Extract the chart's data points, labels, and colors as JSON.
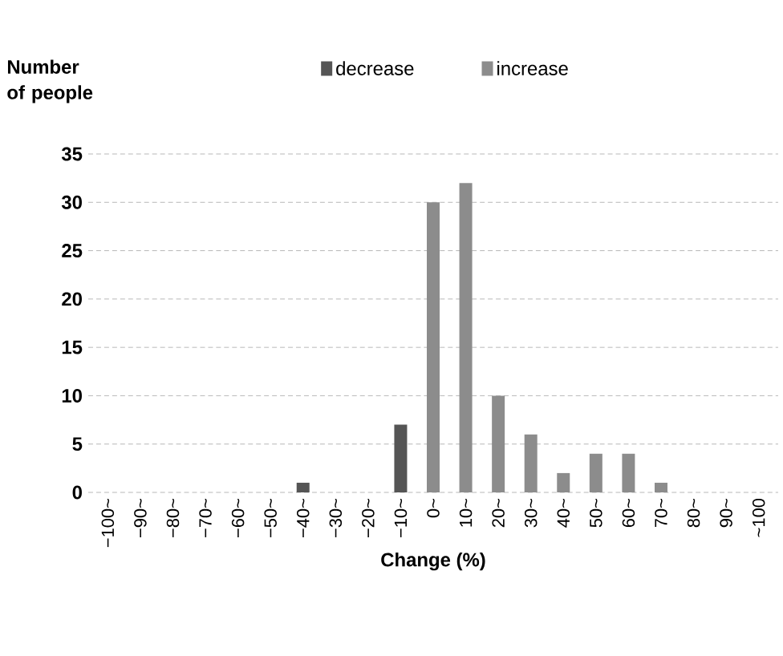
{
  "chart_data": {
    "type": "bar",
    "ylabel": "Number of people",
    "xlabel": "Change (%)",
    "categories": [
      "−100~",
      "−90~",
      "−80~",
      "−70~",
      "−60~",
      "−50~",
      "−40~",
      "−30~",
      "−20~",
      "−10~",
      "0~",
      "10~",
      "20~",
      "30~",
      "40~",
      "50~",
      "60~",
      "70~",
      "80~",
      "90~",
      "~100"
    ],
    "series": [
      {
        "name": "decrease",
        "color": "#555555",
        "values": [
          0,
          0,
          0,
          0,
          0,
          0,
          1,
          0,
          0,
          7,
          null,
          null,
          null,
          null,
          null,
          null,
          null,
          null,
          null,
          null,
          null
        ]
      },
      {
        "name": "increase",
        "color": "#8c8c8c",
        "values": [
          null,
          null,
          null,
          null,
          null,
          null,
          null,
          null,
          null,
          null,
          30,
          32,
          10,
          6,
          2,
          4,
          4,
          1,
          0,
          0,
          0
        ]
      }
    ],
    "ylim": [
      0,
      35
    ],
    "yticks": [
      0,
      5,
      10,
      15,
      20,
      25,
      30,
      35
    ],
    "grid": "y",
    "legend": "top"
  }
}
